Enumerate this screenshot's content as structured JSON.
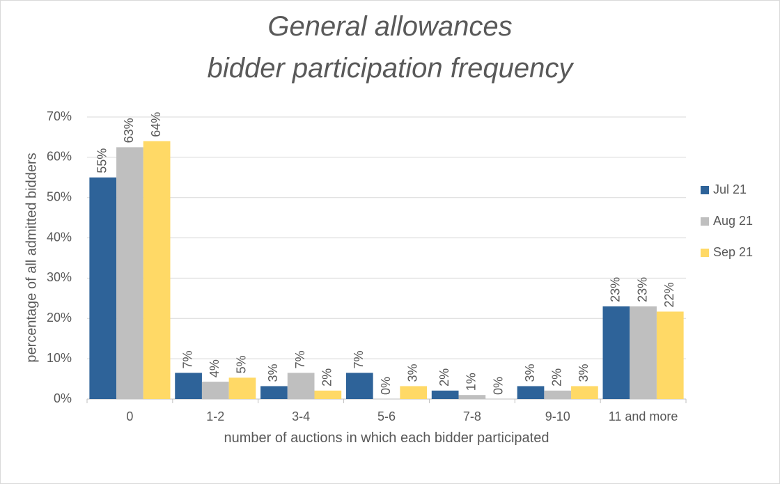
{
  "chart_data": {
    "type": "bar",
    "title": "General allowances\nbidder participation frequency",
    "x_label": "number of auctions in which each bidder participated",
    "y_label": "percentage of all admitted bidders",
    "categories": [
      "0",
      "1-2",
      "3-4",
      "5-6",
      "7-8",
      "9-10",
      "11 and more"
    ],
    "series": [
      {
        "name": "Jul 21",
        "color": "#2e6399",
        "values": [
          55,
          6.5,
          3.2,
          6.5,
          2.1,
          3.2,
          23
        ],
        "value_labels": [
          "55%",
          "7%",
          "3%",
          "7%",
          "2%",
          "3%",
          "23%"
        ]
      },
      {
        "name": "Aug 21",
        "color": "#bfbfbf",
        "values": [
          62.5,
          4.3,
          6.5,
          0,
          1,
          2.1,
          23
        ],
        "value_labels": [
          "63%",
          "4%",
          "7%",
          "0%",
          "1%",
          "2%",
          "23%"
        ]
      },
      {
        "name": "Sep 21",
        "color": "#ffd966",
        "values": [
          64,
          5.3,
          2.1,
          3.2,
          0,
          3.2,
          21.7
        ],
        "value_labels": [
          "64%",
          "5%",
          "2%",
          "3%",
          "0%",
          "3%",
          "22%"
        ]
      }
    ],
    "ylim": [
      0,
      70
    ],
    "yticks": [
      {
        "value": 0,
        "label": "0%"
      },
      {
        "value": 10,
        "label": "10%"
      },
      {
        "value": 20,
        "label": "20%"
      },
      {
        "value": 30,
        "label": "30%"
      },
      {
        "value": 40,
        "label": "40%"
      },
      {
        "value": 50,
        "label": "50%"
      },
      {
        "value": 60,
        "label": "60%"
      },
      {
        "value": 70,
        "label": "70%"
      }
    ],
    "grid": true,
    "legend": "right"
  }
}
